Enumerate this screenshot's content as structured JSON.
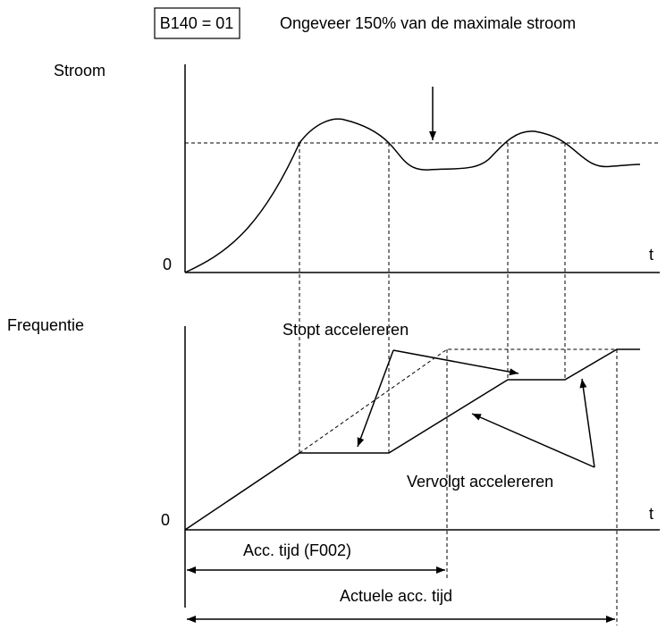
{
  "box_label": "B140 = 01",
  "note": "Ongeveer 150% van de maximale stroom",
  "top_graph": {
    "y_label": "Stroom",
    "origin": "0",
    "x_label": "t"
  },
  "bottom_graph": {
    "y_label": "Frequentie",
    "origin": "0",
    "x_label": "t",
    "annotation_stop": "Stopt accelereren",
    "annotation_continue": "Vervolgt accelereren"
  },
  "acc_time": "Acc. tijd (F002)",
  "actual_acc_time": "Actuele acc. tijd"
}
